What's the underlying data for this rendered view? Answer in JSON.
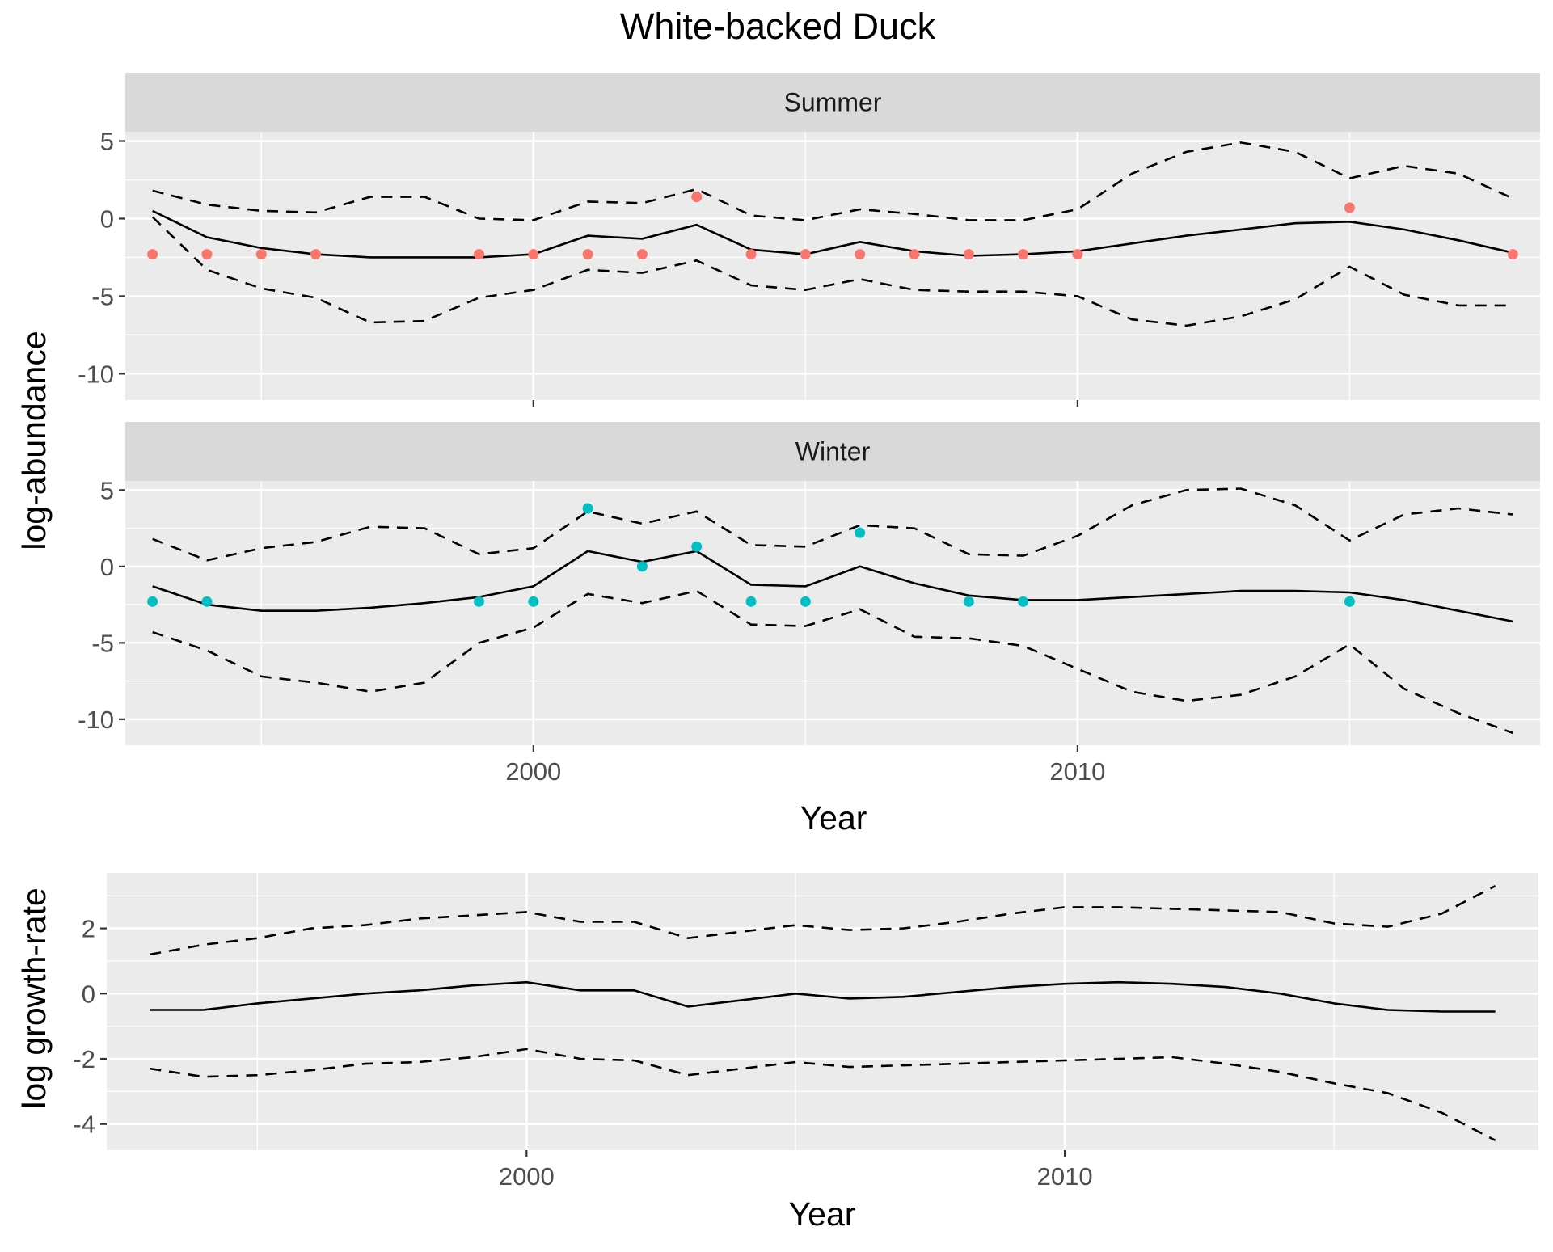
{
  "title": "White-backed Duck",
  "chart_data": [
    {
      "type": "line",
      "facet": "Summer",
      "xlabel": "Year",
      "ylabel": "log-abundance",
      "xlim": [
        1992.5,
        2018.5
      ],
      "ylim": [
        -11.7,
        5.6
      ],
      "x_breaks": [
        2000,
        2010
      ],
      "x_minor_breaks": [
        1995,
        2005,
        2015
      ],
      "y_breaks": [
        -10,
        -5,
        0,
        5
      ],
      "y_minor_breaks": [
        -7.5,
        -2.5,
        2.5
      ],
      "grid": true,
      "point_color": "#F8766D",
      "x": [
        1993,
        1994,
        1995,
        1996,
        1997,
        1998,
        1999,
        2000,
        2001,
        2002,
        2003,
        2004,
        2005,
        2006,
        2007,
        2008,
        2009,
        2010,
        2011,
        2012,
        2013,
        2014,
        2015,
        2016,
        2017,
        2018
      ],
      "series": [
        {
          "role": "estimate",
          "values": [
            0.5,
            -1.2,
            -1.9,
            -2.3,
            -2.5,
            -2.5,
            -2.5,
            -2.3,
            -1.1,
            -1.3,
            -0.4,
            -2.0,
            -2.3,
            -1.5,
            -2.1,
            -2.4,
            -2.3,
            -2.1,
            -1.6,
            -1.1,
            -0.7,
            -0.3,
            -0.2,
            -0.7,
            -1.4,
            -2.2
          ]
        },
        {
          "role": "upper",
          "values": [
            1.8,
            0.9,
            0.5,
            0.4,
            1.4,
            1.4,
            0.0,
            -0.1,
            1.1,
            1.0,
            1.9,
            0.2,
            -0.1,
            0.6,
            0.3,
            -0.1,
            -0.1,
            0.6,
            2.9,
            4.3,
            4.9,
            4.3,
            2.6,
            3.4,
            2.9,
            1.3
          ]
        },
        {
          "role": "lower",
          "values": [
            0.1,
            -3.3,
            -4.5,
            -5.1,
            -6.7,
            -6.6,
            -5.1,
            -4.6,
            -3.3,
            -3.5,
            -2.7,
            -4.3,
            -4.6,
            -3.9,
            -4.6,
            -4.7,
            -4.7,
            -5.0,
            -6.5,
            -6.9,
            -6.3,
            -5.2,
            -3.1,
            -4.9,
            -5.6,
            -5.6
          ]
        }
      ],
      "points": [
        {
          "x": 1993,
          "y": -2.3
        },
        {
          "x": 1994,
          "y": -2.3
        },
        {
          "x": 1995,
          "y": -2.3
        },
        {
          "x": 1996,
          "y": -2.3
        },
        {
          "x": 1999,
          "y": -2.3
        },
        {
          "x": 2000,
          "y": -2.3
        },
        {
          "x": 2001,
          "y": -2.3
        },
        {
          "x": 2002,
          "y": -2.3
        },
        {
          "x": 2003,
          "y": 1.4
        },
        {
          "x": 2004,
          "y": -2.3
        },
        {
          "x": 2005,
          "y": -2.3
        },
        {
          "x": 2006,
          "y": -2.3
        },
        {
          "x": 2007,
          "y": -2.3
        },
        {
          "x": 2008,
          "y": -2.3
        },
        {
          "x": 2009,
          "y": -2.3
        },
        {
          "x": 2010,
          "y": -2.3
        },
        {
          "x": 2015,
          "y": 0.7
        },
        {
          "x": 2018,
          "y": -2.3
        }
      ]
    },
    {
      "type": "line",
      "facet": "Winter",
      "xlabel": "Year",
      "ylabel": "log-abundance",
      "xlim": [
        1992.5,
        2018.5
      ],
      "ylim": [
        -11.7,
        5.6
      ],
      "x_breaks": [
        2000,
        2010
      ],
      "x_minor_breaks": [
        1995,
        2005,
        2015
      ],
      "y_breaks": [
        -10,
        -5,
        0,
        5
      ],
      "y_minor_breaks": [
        -7.5,
        -2.5,
        2.5
      ],
      "grid": true,
      "point_color": "#00BFC4",
      "x": [
        1993,
        1994,
        1995,
        1996,
        1997,
        1998,
        1999,
        2000,
        2001,
        2002,
        2003,
        2004,
        2005,
        2006,
        2007,
        2008,
        2009,
        2010,
        2011,
        2012,
        2013,
        2014,
        2015,
        2016,
        2017,
        2018
      ],
      "series": [
        {
          "role": "estimate",
          "values": [
            -1.3,
            -2.5,
            -2.9,
            -2.9,
            -2.7,
            -2.4,
            -2.0,
            -1.3,
            1.0,
            0.3,
            1.0,
            -1.2,
            -1.3,
            0.0,
            -1.1,
            -1.9,
            -2.2,
            -2.2,
            -2.0,
            -1.8,
            -1.6,
            -1.6,
            -1.7,
            -2.2,
            -2.9,
            -3.6
          ]
        },
        {
          "role": "upper",
          "values": [
            1.8,
            0.4,
            1.2,
            1.6,
            2.6,
            2.5,
            0.8,
            1.2,
            3.6,
            2.8,
            3.6,
            1.4,
            1.3,
            2.7,
            2.5,
            0.8,
            0.7,
            2.0,
            4.0,
            5.0,
            5.1,
            4.0,
            1.7,
            3.4,
            3.8,
            3.4
          ]
        },
        {
          "role": "lower",
          "values": [
            -4.3,
            -5.5,
            -7.2,
            -7.6,
            -8.2,
            -7.6,
            -5.0,
            -4.0,
            -1.8,
            -2.4,
            -1.6,
            -3.8,
            -3.9,
            -2.8,
            -4.6,
            -4.7,
            -5.2,
            -6.7,
            -8.2,
            -8.8,
            -8.4,
            -7.2,
            -5.1,
            -8.0,
            -9.6,
            -10.9
          ]
        }
      ],
      "points": [
        {
          "x": 1993,
          "y": -2.3
        },
        {
          "x": 1994,
          "y": -2.3
        },
        {
          "x": 1999,
          "y": -2.3
        },
        {
          "x": 2000,
          "y": -2.3
        },
        {
          "x": 2001,
          "y": 3.8
        },
        {
          "x": 2002,
          "y": 0.0
        },
        {
          "x": 2003,
          "y": 1.3
        },
        {
          "x": 2004,
          "y": -2.3
        },
        {
          "x": 2005,
          "y": -2.3
        },
        {
          "x": 2006,
          "y": 2.2
        },
        {
          "x": 2008,
          "y": -2.3
        },
        {
          "x": 2009,
          "y": -2.3
        },
        {
          "x": 2015,
          "y": -2.3
        }
      ]
    },
    {
      "type": "line",
      "xlabel": "Year",
      "ylabel": "log growth-rate",
      "xlim": [
        1992.2,
        2018.8
      ],
      "ylim": [
        -4.8,
        3.7
      ],
      "x_breaks": [
        2000,
        2010
      ],
      "x_minor_breaks": [
        1995,
        2005,
        2015
      ],
      "y_breaks": [
        -4,
        -2,
        0,
        2
      ],
      "y_minor_breaks": [
        -3,
        -1,
        1,
        3
      ],
      "grid": true,
      "x": [
        1993,
        1994,
        1995,
        1996,
        1997,
        1998,
        1999,
        2000,
        2001,
        2002,
        2003,
        2004,
        2005,
        2006,
        2007,
        2008,
        2009,
        2010,
        2011,
        2012,
        2013,
        2014,
        2015,
        2016,
        2017,
        2018
      ],
      "series": [
        {
          "role": "estimate",
          "values": [
            -0.5,
            -0.5,
            -0.3,
            -0.15,
            0.0,
            0.1,
            0.25,
            0.35,
            0.1,
            0.1,
            -0.4,
            -0.2,
            0.0,
            -0.15,
            -0.1,
            0.05,
            0.2,
            0.3,
            0.35,
            0.3,
            0.2,
            0.0,
            -0.3,
            -0.5,
            -0.55,
            -0.55
          ]
        },
        {
          "role": "upper",
          "values": [
            1.2,
            1.5,
            1.7,
            2.0,
            2.1,
            2.3,
            2.4,
            2.5,
            2.2,
            2.2,
            1.7,
            1.9,
            2.1,
            1.95,
            2.0,
            2.2,
            2.45,
            2.65,
            2.65,
            2.6,
            2.55,
            2.5,
            2.15,
            2.05,
            2.45,
            3.3
          ]
        },
        {
          "role": "lower",
          "values": [
            -2.3,
            -2.55,
            -2.5,
            -2.35,
            -2.15,
            -2.1,
            -1.95,
            -1.7,
            -2.0,
            -2.05,
            -2.5,
            -2.3,
            -2.1,
            -2.25,
            -2.2,
            -2.15,
            -2.1,
            -2.05,
            -2.0,
            -1.95,
            -2.15,
            -2.4,
            -2.75,
            -3.05,
            -3.65,
            -4.5
          ]
        }
      ]
    }
  ]
}
